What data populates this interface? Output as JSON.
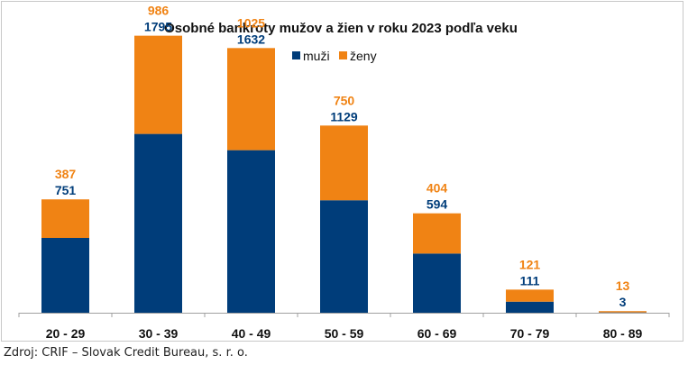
{
  "chart_data": {
    "type": "bar",
    "stacked": true,
    "title": "Osobné bankroty mužov a žien v roku 2023 podľa veku",
    "categories": [
      "20 - 29",
      "30 - 39",
      "40 - 49",
      "50 - 59",
      "60 - 69",
      "70 - 79",
      "80 - 89"
    ],
    "series": [
      {
        "name": "muži",
        "color": "#003d7a",
        "values": [
          751,
          1795,
          1632,
          1129,
          594,
          111,
          3
        ]
      },
      {
        "name": "ženy",
        "color": "#f08314",
        "values": [
          387,
          986,
          1025,
          750,
          404,
          121,
          13
        ]
      }
    ],
    "xlabel": "",
    "ylabel": "",
    "ylim": [
      0,
      2850
    ],
    "grid": false,
    "legend": "top-center"
  },
  "source": "Zdroj: CRIF – Slovak Credit Bureau, s. r. o."
}
